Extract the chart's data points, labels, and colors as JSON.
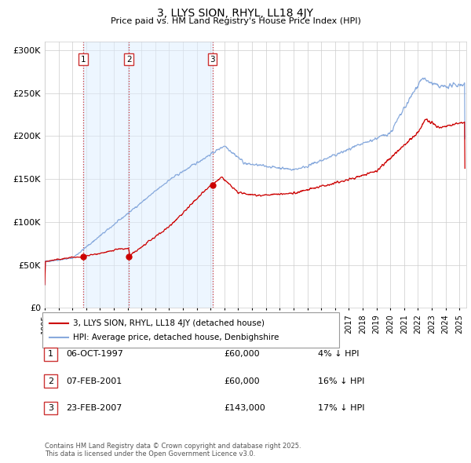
{
  "title": "3, LLYS SION, RHYL, LL18 4JY",
  "subtitle": "Price paid vs. HM Land Registry's House Price Index (HPI)",
  "legend_line1": "3, LLYS SION, RHYL, LL18 4JY (detached house)",
  "legend_line2": "HPI: Average price, detached house, Denbighshire",
  "footer": "Contains HM Land Registry data © Crown copyright and database right 2025.\nThis data is licensed under the Open Government Licence v3.0.",
  "transactions": [
    {
      "num": 1,
      "date": "06-OCT-1997",
      "price": "£60,000",
      "hpi_diff": "4% ↓ HPI"
    },
    {
      "num": 2,
      "date": "07-FEB-2001",
      "price": "£60,000",
      "hpi_diff": "16% ↓ HPI"
    },
    {
      "num": 3,
      "date": "23-FEB-2007",
      "price": "£143,000",
      "hpi_diff": "17% ↓ HPI"
    }
  ],
  "vline_years": [
    1997.77,
    2001.09,
    2007.13
  ],
  "shade_color": "#ddeeff",
  "ylim": [
    0,
    310000
  ],
  "yticks": [
    0,
    50000,
    100000,
    150000,
    200000,
    250000,
    300000
  ],
  "ytick_labels": [
    "£0",
    "£50K",
    "£100K",
    "£150K",
    "£200K",
    "£250K",
    "£300K"
  ],
  "red_line_color": "#cc0000",
  "blue_line_color": "#88aadd",
  "vline_color": "#cc3333",
  "grid_color": "#cccccc",
  "xlim_start": 1995,
  "xlim_end": 2025.5
}
